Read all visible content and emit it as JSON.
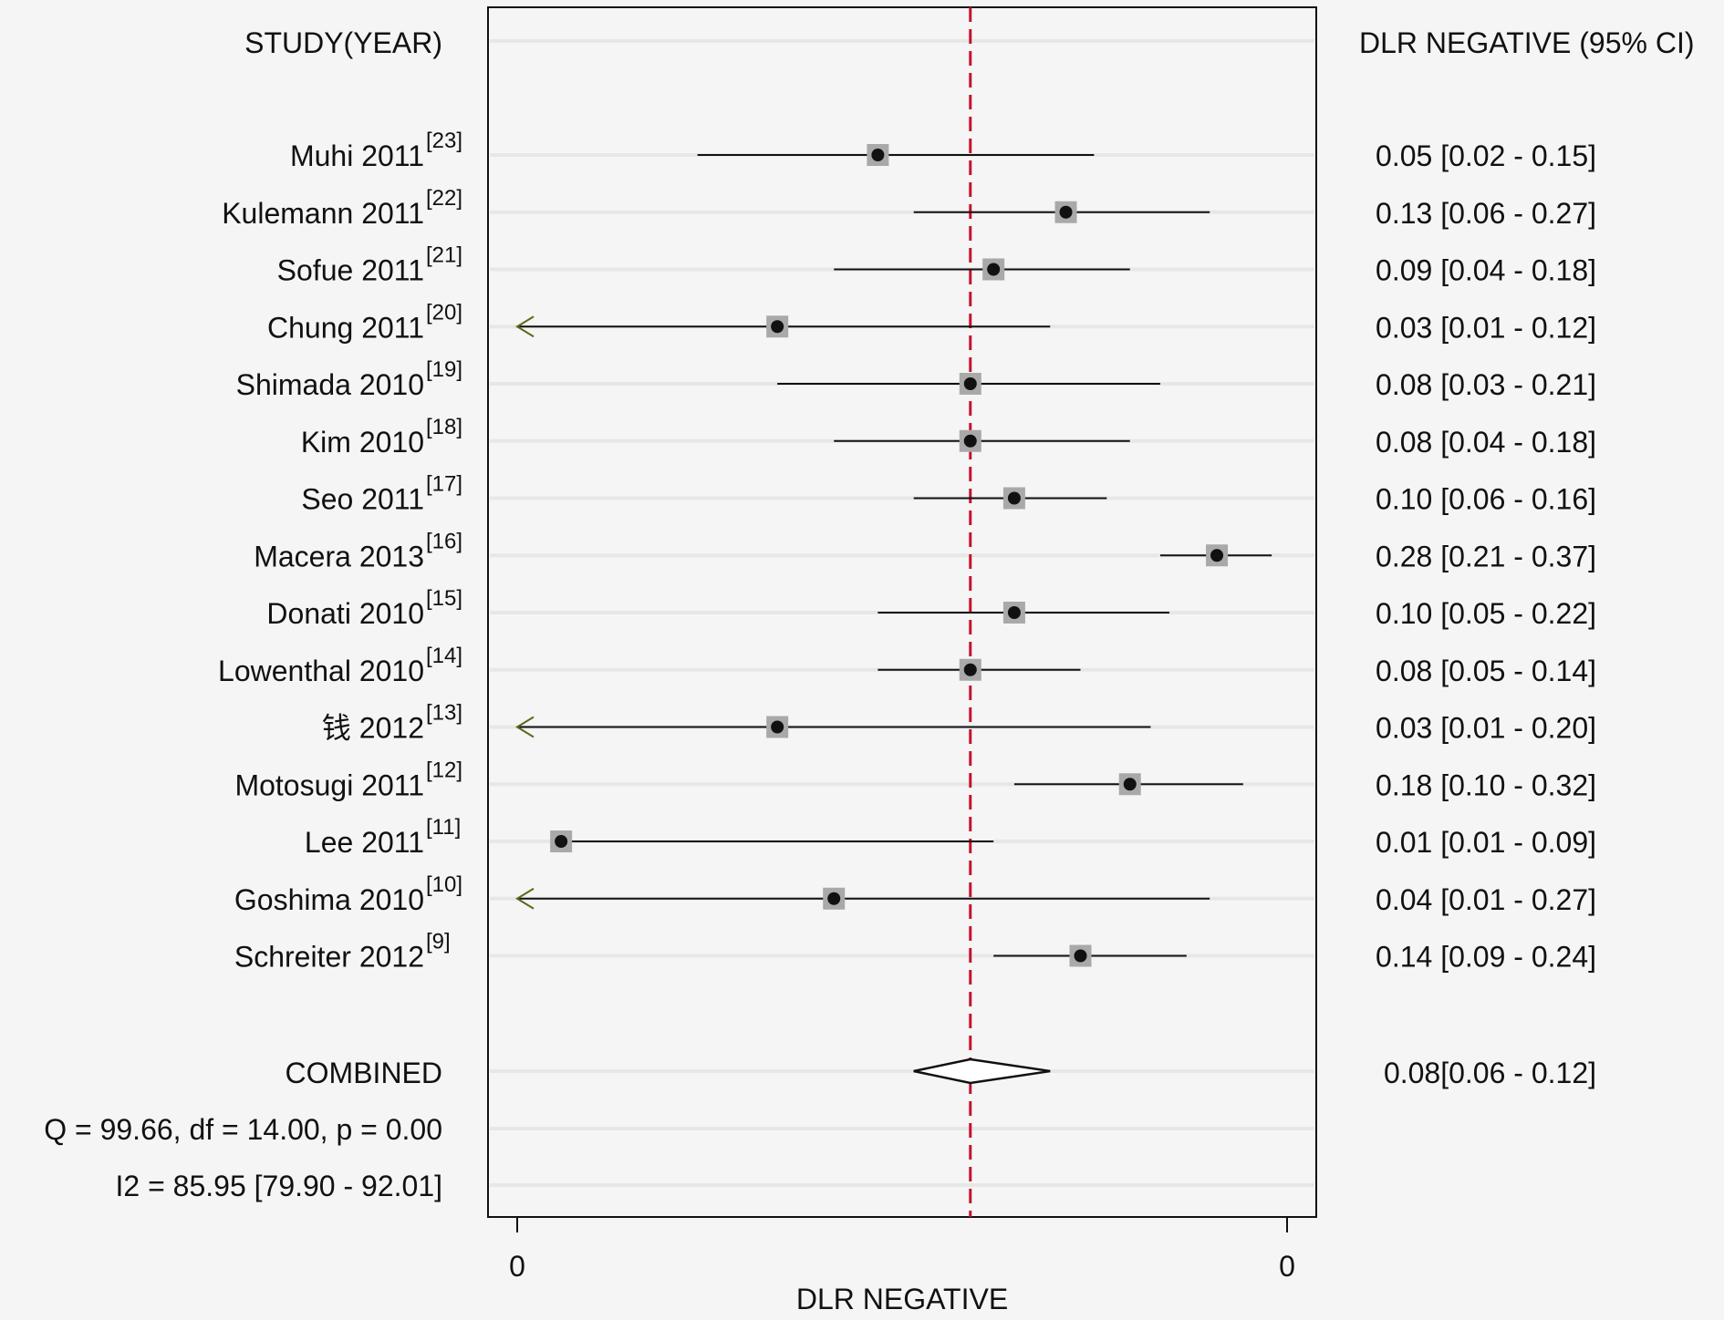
{
  "chart_data": {
    "type": "forest",
    "left_header": "STUDY(YEAR)",
    "right_header": "DLR NEGATIVE (95% CI)",
    "xlabel": "DLR NEGATIVE",
    "x_tick_labels": [
      "0",
      "0"
    ],
    "scale": "log",
    "xlim": [
      0.008,
      0.4
    ],
    "reference_line": 0.08,
    "reference_line_color": "#c8102e",
    "studies": [
      {
        "name": "Muhi",
        "year": "2011",
        "ref": "[23]",
        "est": 0.05,
        "lo": 0.02,
        "hi": 0.15,
        "ci_text": "0.05 [0.02 - 0.15]",
        "truncated_low": false
      },
      {
        "name": "Kulemann",
        "year": "2011",
        "ref": "[22]",
        "est": 0.13,
        "lo": 0.06,
        "hi": 0.27,
        "ci_text": "0.13 [0.06 - 0.27]",
        "truncated_low": false
      },
      {
        "name": "Sofue",
        "year": "2011",
        "ref": "[21]",
        "est": 0.09,
        "lo": 0.04,
        "hi": 0.18,
        "ci_text": "0.09 [0.04 - 0.18]",
        "truncated_low": false
      },
      {
        "name": "Chung",
        "year": "2011",
        "ref": "[20]",
        "est": 0.03,
        "lo": 0.01,
        "hi": 0.12,
        "ci_text": "0.03 [0.01 - 0.12]",
        "truncated_low": true
      },
      {
        "name": "Shimada",
        "year": "2010",
        "ref": "[19]",
        "est": 0.08,
        "lo": 0.03,
        "hi": 0.21,
        "ci_text": "0.08 [0.03 - 0.21]",
        "truncated_low": false
      },
      {
        "name": "Kim",
        "year": "2010",
        "ref": "[18]",
        "est": 0.08,
        "lo": 0.04,
        "hi": 0.18,
        "ci_text": "0.08 [0.04 - 0.18]",
        "truncated_low": false
      },
      {
        "name": "Seo",
        "year": "2011",
        "ref": "[17]",
        "est": 0.1,
        "lo": 0.06,
        "hi": 0.16,
        "ci_text": "0.10 [0.06 - 0.16]",
        "truncated_low": false
      },
      {
        "name": "Macera",
        "year": "2013",
        "ref": "[16]",
        "est": 0.28,
        "lo": 0.21,
        "hi": 0.37,
        "ci_text": "0.28 [0.21 - 0.37]",
        "truncated_low": false
      },
      {
        "name": "Donati",
        "year": "2010",
        "ref": "[15]",
        "est": 0.1,
        "lo": 0.05,
        "hi": 0.22,
        "ci_text": "0.10 [0.05 - 0.22]",
        "truncated_low": false
      },
      {
        "name": "Lowenthal",
        "year": "2010",
        "ref": "[14]",
        "est": 0.08,
        "lo": 0.05,
        "hi": 0.14,
        "ci_text": "0.08 [0.05 - 0.14]",
        "truncated_low": false
      },
      {
        "name": "钱",
        "year": "2012",
        "ref": "[13]",
        "est": 0.03,
        "lo": 0.01,
        "hi": 0.2,
        "ci_text": "0.03 [0.01 - 0.20]",
        "truncated_low": true
      },
      {
        "name": "Motosugi",
        "year": "2011",
        "ref": "[12]",
        "est": 0.18,
        "lo": 0.1,
        "hi": 0.32,
        "ci_text": "0.18 [0.10 - 0.32]",
        "truncated_low": false
      },
      {
        "name": "Lee",
        "year": "2011",
        "ref": "[11]",
        "est": 0.01,
        "lo": 0.01,
        "hi": 0.09,
        "ci_text": "0.01 [0.01 - 0.09]",
        "truncated_low": false
      },
      {
        "name": "Goshima",
        "year": "2010",
        "ref": "[10]",
        "est": 0.04,
        "lo": 0.01,
        "hi": 0.27,
        "ci_text": "0.04 [0.01 - 0.27]",
        "truncated_low": true
      },
      {
        "name": "Schreiter",
        "year": "2012",
        "ref": "[9]",
        "est": 0.14,
        "lo": 0.09,
        "hi": 0.24,
        "ci_text": "0.14 [0.09 - 0.24]",
        "truncated_low": false
      }
    ],
    "combined": {
      "label": "COMBINED",
      "est": 0.08,
      "lo": 0.06,
      "hi": 0.12,
      "ci_text": "0.08[0.06 - 0.12]"
    },
    "heterogeneity_q": "Q = 99.66, df = 14.00, p =  0.00",
    "heterogeneity_i2": "I2 = 85.95 [79.90 - 92.01]"
  }
}
